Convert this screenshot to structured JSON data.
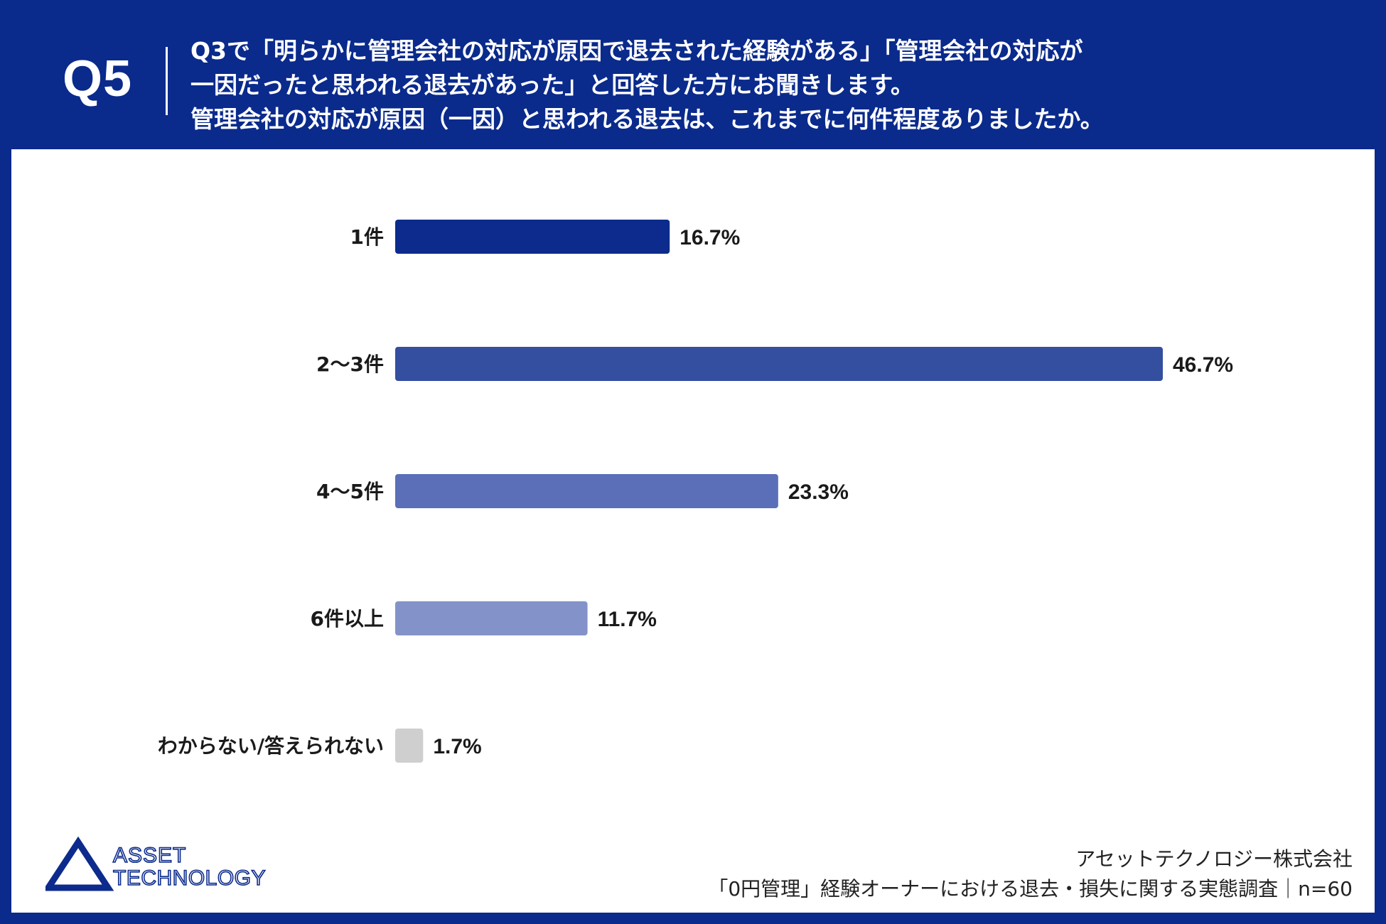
{
  "header": {
    "question_number": "Q5",
    "question_lines": [
      "Q3で「明らかに管理会社の対応が原因で退去された経験がある」「管理会社の対応が",
      "一因だったと思われる退去があった」と回答した方にお聞きします。",
      "管理会社の対応が原因（一因）と思われる退去は、これまでに何件程度ありましたか。"
    ]
  },
  "chart_data": {
    "type": "bar",
    "orientation": "horizontal",
    "categories": [
      "1件",
      "2〜3件",
      "4〜5件",
      "6件以上",
      "わからない/答えられない"
    ],
    "values": [
      16.7,
      46.7,
      23.3,
      11.7,
      1.7
    ],
    "value_labels": [
      "16.7%",
      "46.7%",
      "23.3%",
      "11.7%",
      "1.7%"
    ],
    "bar_colors": [
      "#0c2b8c",
      "#344ea0",
      "#5a6fb8",
      "#8393c9",
      "#cfcfcf"
    ],
    "xlim": [
      0,
      50
    ],
    "grid": false,
    "legend": "none"
  },
  "logo": {
    "line1": "ASSET",
    "line2": "TECHNOLOGY",
    "color": "#0c2b8c"
  },
  "footer": {
    "company": "アセットテクノロジー株式会社",
    "survey": "「0円管理」経験オーナーにおける退去・損失に関する実態調査｜n=60"
  }
}
